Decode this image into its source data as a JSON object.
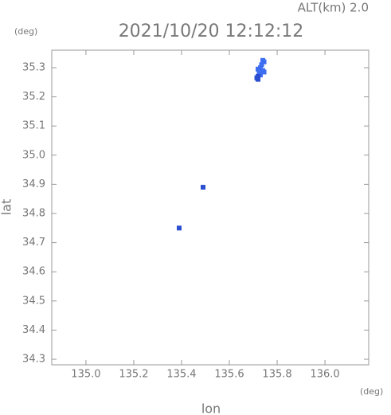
{
  "chart_data": {
    "type": "scatter",
    "title": "2021/10/20 12:12:12",
    "subtitle": "ALT(km) 2.0",
    "x_unit": "(deg)",
    "y_unit": "(deg)",
    "x_label": "lon",
    "y_label": "lat",
    "xlim": [
      134.857,
      136.183
    ],
    "ylim": [
      34.281,
      35.36
    ],
    "xticks": [
      {
        "value": 135.0,
        "label": "135.0"
      },
      {
        "value": 135.2,
        "label": "135.2"
      },
      {
        "value": 135.4,
        "label": "135.4"
      },
      {
        "value": 135.6,
        "label": "135.6"
      },
      {
        "value": 135.8,
        "label": "135.8"
      },
      {
        "value": 136.0,
        "label": "136.0"
      }
    ],
    "yticks": [
      {
        "value": 34.3,
        "label": "34.3"
      },
      {
        "value": 34.4,
        "label": "34.4"
      },
      {
        "value": 34.5,
        "label": "34.5"
      },
      {
        "value": 34.6,
        "label": "34.6"
      },
      {
        "value": 34.7,
        "label": "34.7"
      },
      {
        "value": 34.8,
        "label": "34.8"
      },
      {
        "value": 34.9,
        "label": "34.9"
      },
      {
        "value": 35.0,
        "label": "35.0"
      },
      {
        "value": 35.1,
        "label": "35.1"
      },
      {
        "value": 35.2,
        "label": "35.2"
      },
      35.3
    ],
    "series": [
      {
        "color": "#3d6ef2",
        "x": [
          135.74,
          135.745,
          135.735,
          135.73,
          135.72,
          135.74,
          135.745,
          135.725,
          135.73
        ],
        "values": [
          35.325,
          35.32,
          35.31,
          35.3,
          35.295,
          35.29,
          35.285,
          35.28,
          35.275
        ]
      },
      {
        "color": "#2b4fd0",
        "x": [
          135.72,
          135.715,
          135.72,
          135.49,
          135.39
        ],
        "values": [
          35.27,
          35.265,
          35.26,
          34.89,
          34.75
        ]
      }
    ]
  }
}
